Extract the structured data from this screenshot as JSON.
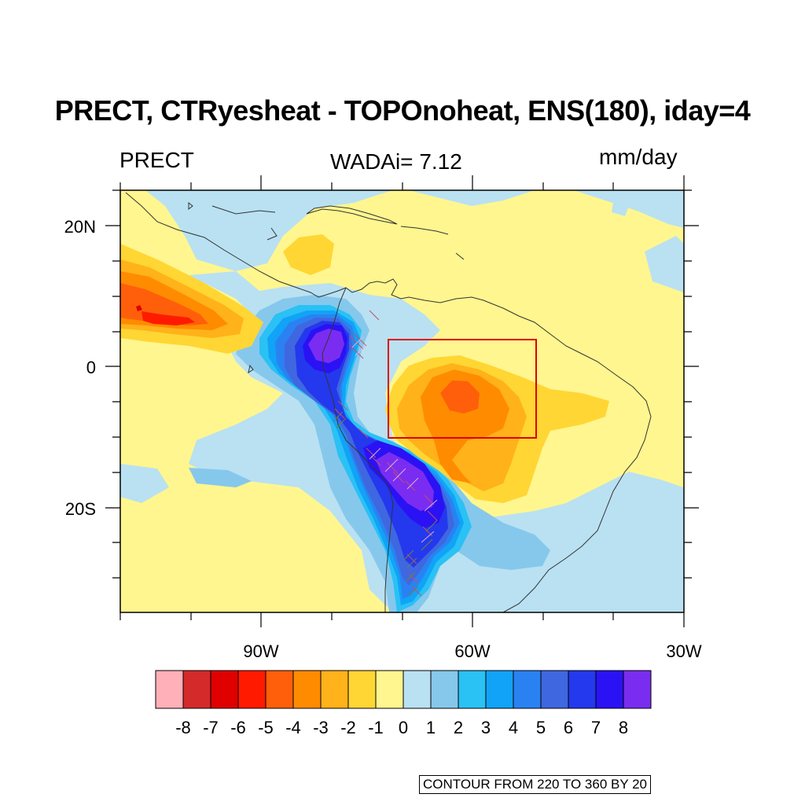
{
  "title": "PRECT, CTRyesheat - TOPOnoheat, ENS(180), iday=4",
  "left_label": "PRECT",
  "center_label": "WADAi= 7.12",
  "right_label": "mm/day",
  "info_text": "CONTOUR FROM 220 TO 360 BY 20",
  "lat_labels": [
    "20N",
    "0",
    "20S"
  ],
  "lon_labels": [
    "90W",
    "60W",
    "30W"
  ],
  "colorbar": {
    "labels": [
      "-8",
      "-7",
      "-6",
      "-5",
      "-4",
      "-3",
      "-2",
      "-1",
      "0",
      "1",
      "2",
      "3",
      "4",
      "5",
      "6",
      "7",
      "8"
    ],
    "colors": [
      "#ffb0b8",
      "#d42a2a",
      "#e00000",
      "#ff1a00",
      "#ff5f0a",
      "#ff8c00",
      "#ffb21a",
      "#ffd633",
      "#fff68f",
      "#b9e1f2",
      "#86c8ec",
      "#2ac1f5",
      "#11a3f7",
      "#2a82f2",
      "#3f67e0",
      "#2438ee",
      "#2a12f5",
      "#7a2df0"
    ]
  },
  "map": {
    "region": {
      "lon_min": -110,
      "lon_max": -30,
      "lat_min": -35,
      "lat_max": 25
    },
    "box": {
      "lon_min": -72,
      "lon_max": -51,
      "lat_min": -10,
      "lat_max": 4
    },
    "box_color": "#e00000",
    "background_fill": "#fff68f"
  }
}
